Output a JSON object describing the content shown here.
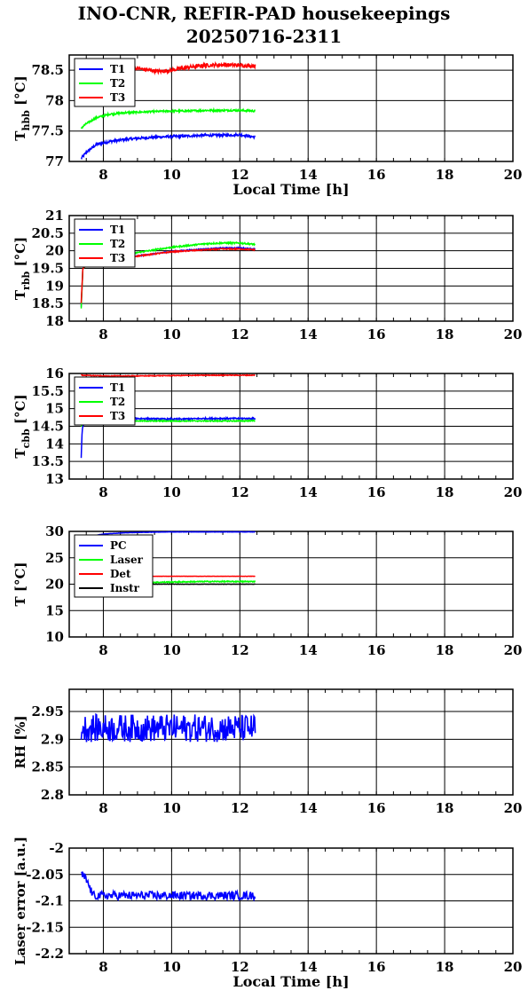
{
  "title": "INO-CNR, REFIR-PAD housekeepings",
  "subtitle": "20250716-2311",
  "colors": {
    "T1": "#0000ff",
    "T2": "#00ff00",
    "T3": "#ff0000",
    "PC": "#0000ff",
    "Laser": "#00ff00",
    "Det": "#ff0000",
    "Instr": "#000000",
    "RH": "#0000ff",
    "LaserErr": "#0000ff"
  },
  "chart_data": [
    {
      "type": "line",
      "ylabel_main": "T",
      "ylabel_sub": "hbb",
      "ylabel_unit": " [°C]",
      "xlabel": "Local Time [h]",
      "xlim": [
        7,
        20
      ],
      "xticks": [
        "8",
        "10",
        "12",
        "14",
        "16",
        "18",
        "20"
      ],
      "ylim": [
        77,
        78.75
      ],
      "yticks": [
        77,
        77.5,
        78,
        78.5
      ],
      "yticklabels": [
        "77",
        "77.5",
        "78",
        "78.5"
      ],
      "grid": true,
      "legend_position": "top-left",
      "series": [
        {
          "name": "T1",
          "x": [
            7.35,
            7.5,
            7.8,
            8.2,
            8.6,
            9,
            9.5,
            10,
            10.5,
            11,
            11.5,
            12,
            12.45
          ],
          "y": [
            77.05,
            77.15,
            77.28,
            77.33,
            77.36,
            77.38,
            77.4,
            77.41,
            77.42,
            77.43,
            77.43,
            77.44,
            77.4
          ],
          "noise": 0.02
        },
        {
          "name": "T2",
          "x": [
            7.35,
            7.5,
            7.8,
            8.2,
            8.6,
            9,
            9.5,
            10,
            10.5,
            11,
            11.5,
            12,
            12.45
          ],
          "y": [
            77.55,
            77.62,
            77.72,
            77.78,
            77.8,
            77.81,
            77.82,
            77.83,
            77.83,
            77.84,
            77.84,
            77.84,
            77.83
          ],
          "noise": 0.015
        },
        {
          "name": "T3",
          "x": [
            7.35,
            8,
            9,
            9.6,
            10,
            10.5,
            11,
            11.5,
            12,
            12.45
          ],
          "y": [
            78.55,
            78.55,
            78.53,
            78.48,
            78.5,
            78.55,
            78.58,
            78.59,
            78.58,
            78.57
          ],
          "noise": 0.03
        }
      ]
    },
    {
      "type": "line",
      "ylabel_main": "T",
      "ylabel_sub": "rbb",
      "ylabel_unit": " [°C]",
      "xlim": [
        7,
        20
      ],
      "xticks": [
        "8",
        "10",
        "12",
        "14",
        "16",
        "18",
        "20"
      ],
      "ylim": [
        18,
        21
      ],
      "yticks": [
        18,
        18.5,
        19,
        19.5,
        20,
        20.5,
        21
      ],
      "yticklabels": [
        "18",
        "18.5",
        "19",
        "19.5",
        "20",
        "20.5",
        "21"
      ],
      "grid": true,
      "legend_position": "top-left",
      "series": [
        {
          "name": "T1",
          "x": [
            7.35,
            7.4,
            7.5,
            8,
            9,
            10,
            11,
            11.5,
            12,
            12.45
          ],
          "y": [
            18.4,
            19.5,
            19.6,
            19.7,
            19.85,
            19.98,
            20.05,
            20.08,
            20.08,
            20.05
          ],
          "noise": 0.015
        },
        {
          "name": "T2",
          "x": [
            7.35,
            7.4,
            7.5,
            8,
            9,
            10,
            11,
            11.5,
            12,
            12.45
          ],
          "y": [
            18.35,
            19.5,
            19.6,
            19.72,
            19.95,
            20.1,
            20.2,
            20.22,
            20.22,
            20.18
          ],
          "noise": 0.02
        },
        {
          "name": "T3",
          "x": [
            7.35,
            7.4,
            7.5,
            8,
            9,
            10,
            11,
            11.5,
            12,
            12.45
          ],
          "y": [
            18.5,
            19.5,
            19.6,
            19.7,
            19.85,
            19.97,
            20.03,
            20.05,
            20.05,
            20.03
          ],
          "noise": 0.015
        }
      ]
    },
    {
      "type": "line",
      "ylabel_main": "T",
      "ylabel_sub": "cbb",
      "ylabel_unit": " [°C]",
      "xlim": [
        7,
        20
      ],
      "xticks": [
        "8",
        "10",
        "12",
        "14",
        "16",
        "18",
        "20"
      ],
      "ylim": [
        13,
        16
      ],
      "yticks": [
        13,
        13.5,
        14,
        14.5,
        15,
        15.5,
        16
      ],
      "yticklabels": [
        "13",
        "13.5",
        "14",
        "14.5",
        "15",
        "15.5",
        "16"
      ],
      "grid": true,
      "legend_position": "top-left",
      "series": [
        {
          "name": "T1",
          "x": [
            7.35,
            7.38,
            7.45,
            7.6,
            8,
            9,
            10,
            11,
            12,
            12.45
          ],
          "y": [
            13.6,
            14.4,
            14.7,
            14.72,
            14.72,
            14.72,
            14.7,
            14.72,
            14.72,
            14.72
          ],
          "noise": 0.02
        },
        {
          "name": "T2",
          "x": [
            7.35,
            7.45,
            7.6,
            8,
            9,
            10,
            11,
            12,
            12.45
          ],
          "y": [
            14.5,
            14.65,
            14.66,
            14.65,
            14.65,
            14.65,
            14.65,
            14.65,
            14.66
          ],
          "noise": 0.015
        },
        {
          "name": "T3",
          "x": [
            7.35,
            8,
            9,
            10,
            11,
            12,
            12.45
          ],
          "y": [
            15.95,
            15.93,
            15.93,
            15.94,
            15.95,
            15.95,
            15.95
          ],
          "noise": 0.01
        }
      ]
    },
    {
      "type": "line",
      "ylabel_main": "T",
      "ylabel_sub": "",
      "ylabel_unit": " [°C]",
      "xlim": [
        7,
        20
      ],
      "xticks": [
        "8",
        "10",
        "12",
        "14",
        "16",
        "18",
        "20"
      ],
      "ylim": [
        10,
        30
      ],
      "yticks": [
        10,
        15,
        20,
        25,
        30
      ],
      "yticklabels": [
        "10",
        "15",
        "20",
        "25",
        "30"
      ],
      "grid": true,
      "legend_position": "top-left",
      "series": [
        {
          "name": "PC",
          "x": [
            7.35,
            8,
            8.5,
            9,
            10,
            11,
            12,
            12.45
          ],
          "y": [
            28.8,
            29.5,
            29.7,
            29.8,
            29.9,
            29.9,
            29.9,
            29.9
          ],
          "noise": 0.02
        },
        {
          "name": "Laser",
          "x": [
            7.35,
            8,
            9,
            10,
            11,
            12,
            12.45
          ],
          "y": [
            20.2,
            20.2,
            20.3,
            20.4,
            20.5,
            20.5,
            20.5
          ],
          "noise": 0.1
        },
        {
          "name": "Det",
          "x": [
            7.35,
            8,
            9,
            10,
            11,
            12,
            12.45
          ],
          "y": [
            21.5,
            21.5,
            21.5,
            21.5,
            21.5,
            21.5,
            21.5
          ],
          "noise": 0.02
        },
        {
          "name": "Instr",
          "x": [
            7.35,
            8,
            9,
            10,
            11,
            12,
            12.45
          ],
          "y": [
            20,
            20,
            20,
            20,
            20,
            20,
            20
          ],
          "noise": 0.02
        }
      ]
    },
    {
      "type": "line",
      "ylabel_main": "RH [%]",
      "ylabel_sub": "",
      "ylabel_unit": "",
      "xlim": [
        7,
        20
      ],
      "xticks": [
        "8",
        "10",
        "12",
        "14",
        "16",
        "18",
        "20"
      ],
      "ylim": [
        2.8,
        2.99
      ],
      "yticks": [
        2.8,
        2.85,
        2.9,
        2.95
      ],
      "yticklabels": [
        "2.8",
        "2.85",
        "2.9",
        "2.95"
      ],
      "grid": true,
      "legend_position": "none",
      "series": [
        {
          "name": "",
          "x": [
            7.35,
            12.45
          ],
          "y": [
            2.92,
            2.92
          ],
          "noise": 0.025
        }
      ]
    },
    {
      "type": "line",
      "ylabel_main": "Laser error [a.u.]",
      "ylabel_sub": "",
      "ylabel_unit": "",
      "xlabel": "Local Time [h]",
      "xlim": [
        7,
        20
      ],
      "xticks": [
        "8",
        "10",
        "12",
        "14",
        "16",
        "18",
        "20"
      ],
      "ylim": [
        -2.2,
        -2
      ],
      "yticks": [
        -2.2,
        -2.15,
        -2.1,
        -2.05,
        -2
      ],
      "yticklabels": [
        "-2.2",
        "-2.15",
        "-2.1",
        "-2.05",
        "-2"
      ],
      "grid": true,
      "legend_position": "none",
      "series": [
        {
          "name": "",
          "x": [
            7.35,
            7.5,
            7.7,
            8,
            9,
            10,
            11,
            12,
            12.45
          ],
          "y": [
            -2.05,
            -2.06,
            -2.09,
            -2.09,
            -2.09,
            -2.09,
            -2.09,
            -2.09,
            -2.09
          ],
          "noise": 0.008
        }
      ]
    }
  ]
}
